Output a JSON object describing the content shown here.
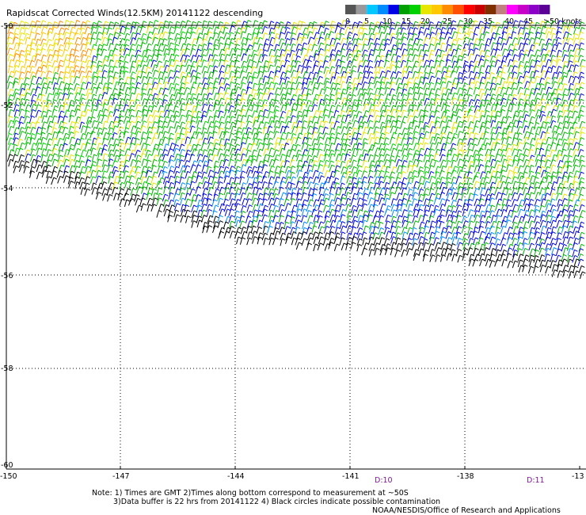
{
  "title": "Rapidscat Corrected Winds(12.5KM) 20141122 descending",
  "legend": {
    "ticks": [
      "0",
      "5",
      "10",
      "15",
      "20",
      "25",
      "30",
      "35",
      "40",
      "45",
      ">50 knots"
    ],
    "colors": [
      "#555555",
      "#999999",
      "#00c8ff",
      "#008cff",
      "#0000e6",
      "#00a000",
      "#00d200",
      "#e6e600",
      "#ffc800",
      "#ff8c00",
      "#ff5000",
      "#ff0000",
      "#c80000",
      "#803000",
      "#c08080",
      "#ff00ff",
      "#c800c8",
      "#8c00c8",
      "#5a0096"
    ]
  },
  "latitudes": [
    "-50",
    "-52",
    "-54",
    "-56",
    "-58",
    "-60"
  ],
  "longitudes": [
    "-150",
    "-147",
    "-144",
    "-141",
    "-138",
    "-13"
  ],
  "time_labels": [
    "D:10",
    "D:11"
  ],
  "notes": {
    "line1": "Note: 1) Times are GMT 2)Times along bottom correspond to measurement at ~50S",
    "line2": "3)Data buffer is 22 hrs from 20141122 4) Black circles indicate possible contamination",
    "credit": "NOAA/NESDIS/Office of Research and Applications"
  }
}
